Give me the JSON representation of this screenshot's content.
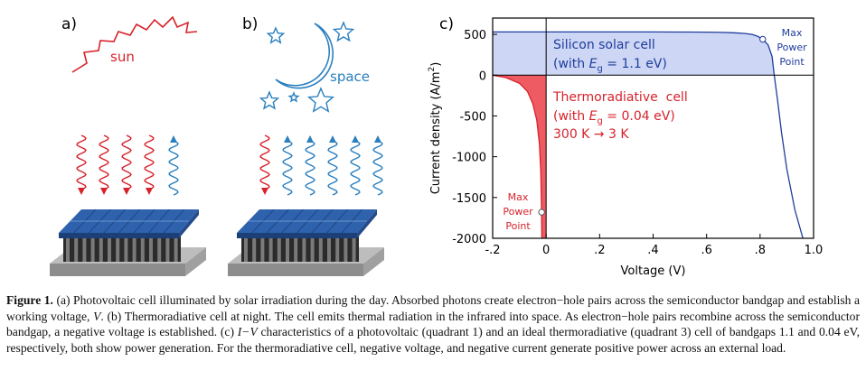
{
  "panels": {
    "a": {
      "label": "a)",
      "sun": "sun"
    },
    "b": {
      "label": "b)",
      "space": "space"
    }
  },
  "chart_data": {
    "type": "line",
    "panel_label": "c)",
    "x_label": "Voltage (V)",
    "y_label": [
      "Current density (A/m",
      "2",
      ")"
    ],
    "xlim": [
      -0.2,
      1.0
    ],
    "ylim": [
      -2000,
      700
    ],
    "xticks": [
      {
        "value": -0.2,
        "label": "-.2"
      },
      0,
      {
        "value": 0.2,
        "label": ".2"
      },
      {
        "value": 0.4,
        "label": ".4"
      },
      {
        "value": 0.6,
        "label": ".6"
      },
      {
        "value": 0.8,
        "label": ".8"
      },
      {
        "value": 1.0,
        "label": "1.0"
      }
    ],
    "yticks": [
      500,
      0,
      -500,
      -1000,
      -1500,
      -2000
    ],
    "mpp_label": [
      "Max",
      "Power",
      "Point"
    ],
    "series": [
      {
        "name": "Silicon solar cell",
        "subtitle": [
          "(with ",
          "E",
          "g",
          " = 1.1 eV)"
        ],
        "color": "#1f3c9c",
        "fill": "#cdd6f4",
        "x": [
          -0.2,
          0,
          0.2,
          0.4,
          0.5,
          0.6,
          0.66,
          0.7,
          0.74,
          0.77,
          0.79,
          0.81,
          0.83,
          0.845,
          0.853,
          0.865,
          0.88,
          0.9,
          0.93,
          0.96
        ],
        "values": [
          530,
          530,
          530,
          530,
          529,
          527,
          524,
          520,
          512,
          500,
          478,
          440,
          370,
          230,
          0,
          -300,
          -700,
          -1150,
          -1650,
          -2000
        ],
        "max_power_point": {
          "x": 0.81,
          "y": 440
        }
      },
      {
        "name": "Thermoradiative  cell",
        "subtitle": [
          "(with ",
          "E",
          "g",
          " = 0.04 eV)"
        ],
        "note": "300 K → 3 K",
        "color": "#d7222b",
        "fill": "#ef5b63",
        "x": [
          -0.2,
          -0.15,
          -0.1,
          -0.07,
          -0.05,
          -0.035,
          -0.025,
          -0.02,
          -0.017,
          -0.016
        ],
        "values": [
          0,
          -30,
          -100,
          -200,
          -350,
          -550,
          -850,
          -1200,
          -1680,
          -2000
        ],
        "max_power_point": {
          "x": -0.017,
          "y": -1680
        }
      }
    ]
  },
  "caption": {
    "label": "Figure 1.",
    "text": [
      " (a) Photovoltaic cell illuminated by solar irradiation during the day. Absorbed photons create electron−hole pairs across the semiconductor bandgap and establish a working voltage, ",
      "V",
      ". (b) Thermoradiative cell at night. The cell emits thermal radiation in the infrared into space. As electron−hole pairs recombine across the semiconductor bandgap, a negative voltage is established. (c) ",
      "I−V",
      " characteristics of a photovoltaic (quadrant 1) and an ideal thermoradiative (quadrant 3) cell of bandgaps 1.1 and 0.04 eV, respectively, both show power generation. For the thermoradiative cell, negative voltage, and negative current generate positive power across an external load."
    ]
  }
}
